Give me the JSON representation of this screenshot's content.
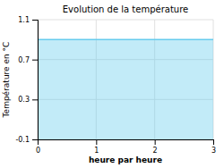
{
  "chart_data": {
    "type": "area",
    "title": "Evolution de la température",
    "xlabel": "heure par heure",
    "ylabel": "Température en °C",
    "x": [
      0,
      1,
      2,
      3
    ],
    "values": [
      0.9,
      0.9,
      0.9,
      0.9
    ],
    "color": "#66ccee",
    "xlim": [
      0,
      3
    ],
    "xticks": [
      0,
      1,
      2,
      3
    ],
    "ylim": [
      -0.1,
      1.1
    ],
    "yticks": [
      -0.1,
      0.3,
      0.7,
      1.1
    ],
    "grid": true
  }
}
